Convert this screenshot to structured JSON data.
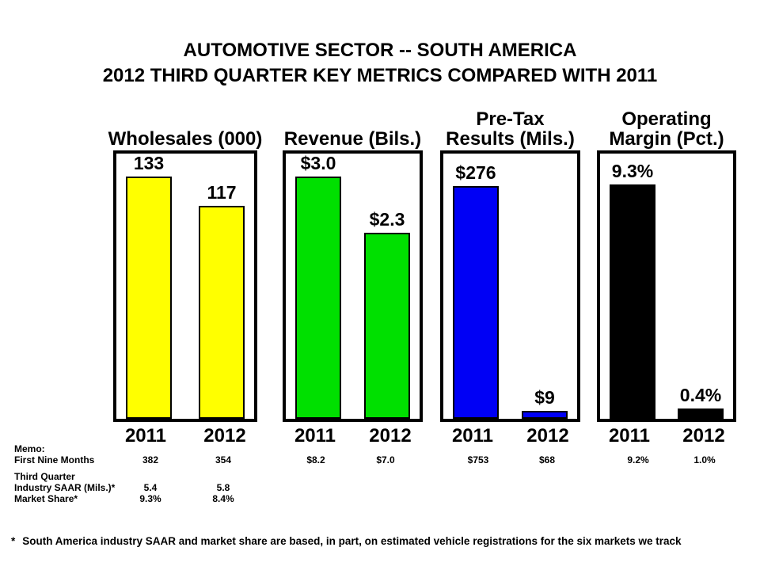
{
  "title": {
    "line1": "AUTOMOTIVE SECTOR -- SOUTH AMERICA",
    "line2": "2012 THIRD QUARTER KEY METRICS COMPARED WITH 2011"
  },
  "chart_data": [
    {
      "type": "bar",
      "title": "Wholesales (000)",
      "header_lines": [
        "Wholesales (000)"
      ],
      "categories": [
        "2011",
        "2012"
      ],
      "values": [
        133,
        117
      ],
      "value_labels": [
        "133",
        "117"
      ],
      "bar_color": "#FFFF00",
      "ylim": [
        0,
        145
      ],
      "grid": false,
      "legend": "none"
    },
    {
      "type": "bar",
      "title": "Revenue (Bils.)",
      "header_lines": [
        "Revenue (Bils.)"
      ],
      "categories": [
        "2011",
        "2012"
      ],
      "values": [
        3.0,
        2.3
      ],
      "value_labels": [
        "$3.0",
        "$2.3"
      ],
      "bar_color": "#00E000",
      "ylim": [
        0,
        3.3
      ],
      "grid": false,
      "legend": "none"
    },
    {
      "type": "bar",
      "title": "Pre-Tax Results (Mils.)",
      "header_lines": [
        "Pre-Tax",
        "Results (Mils.)"
      ],
      "categories": [
        "2011",
        "2012"
      ],
      "values": [
        276,
        9
      ],
      "value_labels": [
        "$276",
        "$9"
      ],
      "bar_color": "#0000F5",
      "ylim": [
        0,
        315
      ],
      "grid": false,
      "legend": "none"
    },
    {
      "type": "bar",
      "title": "Operating Margin (Pct.)",
      "header_lines": [
        "Operating",
        "Margin (Pct.)"
      ],
      "categories": [
        "2011",
        "2012"
      ],
      "values": [
        9.3,
        0.4
      ],
      "value_labels": [
        "9.3%",
        "0.4%"
      ],
      "bar_color": "#000000",
      "ylim": [
        0,
        10.4
      ],
      "grid": false,
      "legend": "none"
    }
  ],
  "memo": {
    "heading": "Memo:",
    "rows": [
      {
        "label": "First Nine Months",
        "values": [
          "382",
          "354",
          "$8.2",
          "$7.0",
          "$753",
          "$68",
          "9.2%",
          "1.0%"
        ]
      },
      {
        "label": "Third Quarter",
        "values": []
      },
      {
        "label": "Industry SAAR (Mils.)*",
        "values": [
          "5.4",
          "5.8"
        ]
      },
      {
        "label": "Market Share*",
        "values": [
          "9.3%",
          "8.4%"
        ]
      }
    ]
  },
  "footnote": {
    "marker": "*",
    "text": "South America industry SAAR and market share are based, in part, on estimated vehicle registrations for the six markets we track"
  }
}
